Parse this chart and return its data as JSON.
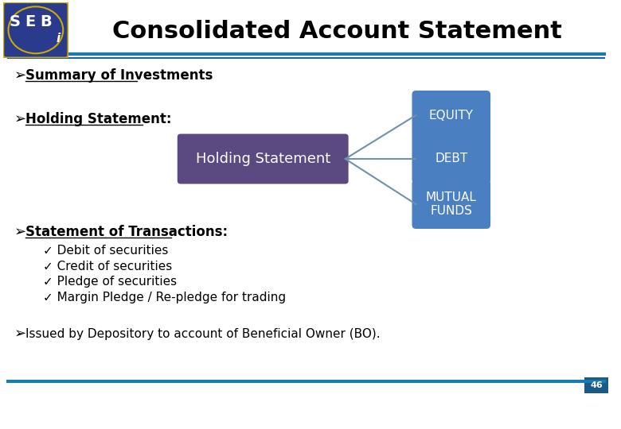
{
  "title": "Consolidated Account Statement",
  "title_fontsize": 22,
  "title_color": "#000000",
  "title_fontweight": "bold",
  "header_line_color": "#1a7aaa",
  "header_line_color2": "#2060a0",
  "bg_color": "#ffffff",
  "bullet": "➢",
  "bullet1_text": "Summary of Investments",
  "bullet2_text": "Holding Statement:",
  "holding_box_text": "Holding Statement",
  "holding_box_color": "#5b4a82",
  "holding_box_text_color": "#ffffff",
  "equity_box_text": "EQUITY",
  "debt_box_text": "DEBT",
  "mutual_box_text": "MUTUAL\nFUNDS",
  "right_box_color": "#4a7fc1",
  "right_box_text_color": "#ffffff",
  "connector_color": "#7090b0",
  "bullet3_text": "Statement of Transactions:",
  "sub_bullets": [
    "✓ Debit of securities",
    "✓ Credit of securities",
    "✓ Pledge of securities",
    "✓ Margin Pledge / Re-pledge for trading"
  ],
  "bullet4_text": "Issued by Depository to account of Beneficial Owner (BO).",
  "footer_line_color": "#1a7aaa",
  "page_number": "46",
  "page_num_bg": "#1a5a8a",
  "page_num_color": "#ffffff"
}
